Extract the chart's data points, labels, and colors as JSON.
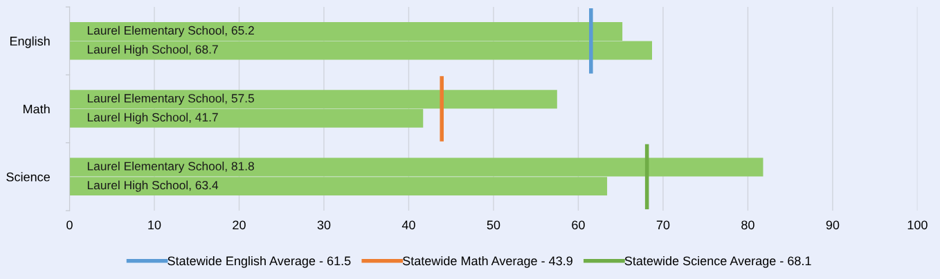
{
  "chart_data": {
    "type": "bar",
    "orientation": "horizontal",
    "categories": [
      "English",
      "Math",
      "Science"
    ],
    "series": [
      {
        "name": "Laurel Elementary School",
        "color": "#92cc6a",
        "values": [
          65.2,
          57.5,
          81.8
        ],
        "value_labels": [
          ", 65.2",
          ", 57.5",
          ", 81.8"
        ]
      },
      {
        "name": "Laurel High School",
        "color": "#92cc6a",
        "values": [
          68.7,
          41.7,
          63.4
        ],
        "value_labels": [
          ", 68.7",
          ", 41.7",
          ", 63.4"
        ]
      }
    ],
    "xlim": [
      0,
      100
    ],
    "xticks": [
      0,
      10,
      20,
      30,
      40,
      50,
      60,
      70,
      80,
      90,
      100
    ],
    "grid": "x",
    "ref_lines": [
      {
        "axis": "x",
        "value": 61.5,
        "label": "Statewide English Average - 61.5",
        "color": "#5b9bd5"
      },
      {
        "axis": "x",
        "value": 43.9,
        "label": "Statewide Math Average - 43.9",
        "color": "#ed7d31"
      },
      {
        "axis": "x",
        "value": 68.1,
        "label": "Statewide Science Average - 68.1",
        "color": "#70ad47"
      }
    ],
    "legend": "bottom"
  }
}
